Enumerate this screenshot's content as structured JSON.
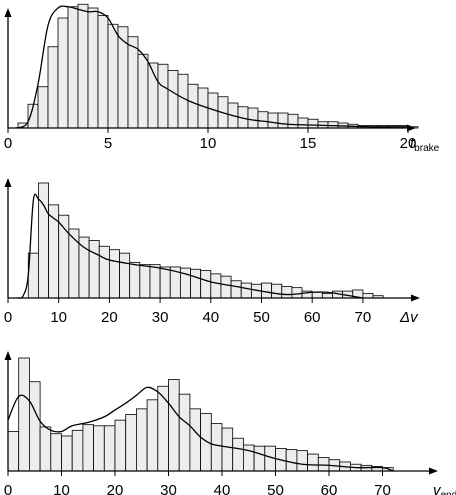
{
  "figure": {
    "colors": {
      "bar_fill": "#ededed",
      "bar_stroke": "#000000",
      "curve": "#000000",
      "axis": "#000000"
    }
  },
  "chart_data": [
    {
      "type": "bar",
      "xlabel": "t",
      "xlabel_sub": "brake",
      "xlim": [
        0,
        20.5
      ],
      "ylim": [
        0,
        1
      ],
      "xticks": [
        0,
        5,
        10,
        15,
        20
      ],
      "tick_labels": [
        "0",
        "5",
        "10",
        "15",
        "20"
      ],
      "y_ticks_shown": false,
      "bin_width": 0.5,
      "bin_start": 0.5,
      "values": [
        0.04,
        0.19,
        0.33,
        0.65,
        0.88,
        0.97,
        0.99,
        0.96,
        0.9,
        0.83,
        0.81,
        0.73,
        0.59,
        0.52,
        0.51,
        0.46,
        0.43,
        0.35,
        0.32,
        0.28,
        0.25,
        0.2,
        0.17,
        0.16,
        0.13,
        0.12,
        0.12,
        0.11,
        0.08,
        0.07,
        0.05,
        0.05,
        0.04,
        0.03,
        0.02,
        0.02,
        0.02,
        0.02,
        0.02,
        0.01
      ],
      "curve": [
        [
          0.4,
          0.0
        ],
        [
          1.0,
          0.05
        ],
        [
          1.5,
          0.35
        ],
        [
          2.0,
          0.82
        ],
        [
          2.5,
          0.96
        ],
        [
          3.0,
          0.97
        ],
        [
          3.5,
          0.95
        ],
        [
          4.0,
          0.93
        ],
        [
          4.5,
          0.93
        ],
        [
          5.0,
          0.88
        ],
        [
          5.5,
          0.74
        ],
        [
          6.0,
          0.67
        ],
        [
          6.5,
          0.63
        ],
        [
          7.0,
          0.53
        ],
        [
          7.5,
          0.37
        ],
        [
          8.0,
          0.31
        ],
        [
          9.0,
          0.22
        ],
        [
          10.0,
          0.16
        ],
        [
          11.0,
          0.11
        ],
        [
          12.0,
          0.07
        ],
        [
          13.0,
          0.05
        ],
        [
          14.0,
          0.03
        ],
        [
          16.0,
          0.02
        ],
        [
          18.0,
          0.01
        ],
        [
          20.0,
          0.01
        ]
      ]
    },
    {
      "type": "bar",
      "xlabel": "Δv",
      "xlim": [
        0,
        80
      ],
      "ylim": [
        0,
        1
      ],
      "xticks": [
        0,
        10,
        20,
        30,
        40,
        50,
        60,
        70
      ],
      "tick_labels": [
        "0",
        "10",
        "20",
        "30",
        "40",
        "50",
        "60",
        "70"
      ],
      "y_ticks_shown": false,
      "bin_width": 2,
      "bin_start": 4,
      "values": [
        0.39,
        1.0,
        0.81,
        0.72,
        0.6,
        0.53,
        0.5,
        0.45,
        0.42,
        0.39,
        0.31,
        0.29,
        0.29,
        0.27,
        0.27,
        0.26,
        0.25,
        0.24,
        0.21,
        0.19,
        0.15,
        0.13,
        0.12,
        0.13,
        0.12,
        0.1,
        0.09,
        0.06,
        0.05,
        0.04,
        0.06,
        0.06,
        0.07,
        0.04,
        0.02
      ],
      "curve": [
        [
          2,
          0.0
        ],
        [
          3,
          0.02
        ],
        [
          4,
          0.2
        ],
        [
          5,
          0.85
        ],
        [
          6,
          0.86
        ],
        [
          7,
          0.81
        ],
        [
          8,
          0.73
        ],
        [
          10,
          0.66
        ],
        [
          12,
          0.56
        ],
        [
          15,
          0.44
        ],
        [
          18,
          0.37
        ],
        [
          20,
          0.33
        ],
        [
          25,
          0.29
        ],
        [
          30,
          0.26
        ],
        [
          35,
          0.21
        ],
        [
          40,
          0.14
        ],
        [
          45,
          0.1
        ],
        [
          50,
          0.06
        ],
        [
          55,
          0.03
        ],
        [
          60,
          0.05
        ],
        [
          63,
          0.05
        ],
        [
          66,
          0.03
        ],
        [
          70,
          0.0
        ]
      ]
    },
    {
      "type": "bar",
      "xlabel": "v",
      "xlabel_sub": "end",
      "xlim": [
        0,
        74
      ],
      "ylim": [
        0,
        1
      ],
      "xticks": [
        0,
        10,
        20,
        30,
        40,
        50,
        60,
        70
      ],
      "tick_labels": [
        "0",
        "10",
        "20",
        "30",
        "40",
        "50",
        "60",
        "70"
      ],
      "y_ticks_shown": false,
      "bin_width": 2,
      "bin_start": 0,
      "values": [
        0.35,
        1.0,
        0.79,
        0.39,
        0.33,
        0.31,
        0.36,
        0.41,
        0.4,
        0.4,
        0.45,
        0.5,
        0.55,
        0.63,
        0.75,
        0.81,
        0.68,
        0.55,
        0.51,
        0.42,
        0.38,
        0.29,
        0.23,
        0.22,
        0.22,
        0.2,
        0.19,
        0.18,
        0.15,
        0.12,
        0.1,
        0.08,
        0.06,
        0.05,
        0.04,
        0.03
      ],
      "curve": [
        [
          0,
          0.45
        ],
        [
          2,
          0.66
        ],
        [
          4,
          0.62
        ],
        [
          6,
          0.44
        ],
        [
          8,
          0.36
        ],
        [
          10,
          0.35
        ],
        [
          12,
          0.4
        ],
        [
          15,
          0.43
        ],
        [
          18,
          0.48
        ],
        [
          20,
          0.54
        ],
        [
          22,
          0.6
        ],
        [
          24,
          0.67
        ],
        [
          26,
          0.74
        ],
        [
          28,
          0.7
        ],
        [
          30,
          0.6
        ],
        [
          32,
          0.48
        ],
        [
          34,
          0.4
        ],
        [
          36,
          0.3
        ],
        [
          38,
          0.24
        ],
        [
          40,
          0.22
        ],
        [
          45,
          0.18
        ],
        [
          50,
          0.11
        ],
        [
          55,
          0.06
        ],
        [
          60,
          0.05
        ],
        [
          65,
          0.03
        ],
        [
          70,
          0.03
        ],
        [
          72,
          0.0
        ]
      ]
    }
  ]
}
